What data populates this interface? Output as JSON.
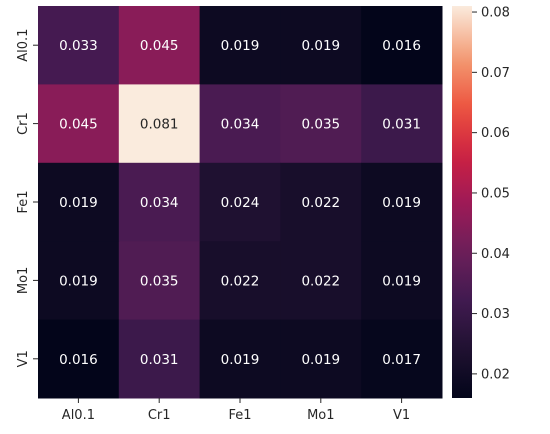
{
  "chart_data": {
    "type": "heatmap",
    "title": "",
    "xlabel": "",
    "ylabel": "",
    "x_categories": [
      "Al0.1",
      "Cr1",
      "Fe1",
      "Mo1",
      "V1"
    ],
    "y_categories": [
      "Al0.1",
      "Cr1",
      "Fe1",
      "Mo1",
      "V1"
    ],
    "values": [
      [
        0.033,
        0.045,
        0.019,
        0.019,
        0.016
      ],
      [
        0.045,
        0.081,
        0.034,
        0.035,
        0.031
      ],
      [
        0.019,
        0.034,
        0.024,
        0.022,
        0.019
      ],
      [
        0.019,
        0.035,
        0.022,
        0.022,
        0.019
      ],
      [
        0.016,
        0.031,
        0.019,
        0.019,
        0.017
      ]
    ],
    "value_labels": [
      [
        "0.033",
        "0.045",
        "0.019",
        "0.019",
        "0.016"
      ],
      [
        "0.045",
        "0.081",
        "0.034",
        "0.035",
        "0.031"
      ],
      [
        "0.019",
        "0.034",
        "0.024",
        "0.022",
        "0.019"
      ],
      [
        "0.019",
        "0.035",
        "0.022",
        "0.022",
        "0.019"
      ],
      [
        "0.016",
        "0.031",
        "0.019",
        "0.019",
        "0.017"
      ]
    ],
    "colormap": "rocket",
    "color_range": [
      0.016,
      0.081
    ],
    "colorbar": {
      "ticks": [
        0.02,
        0.03,
        0.04,
        0.05,
        0.06,
        0.07,
        0.08
      ],
      "tick_labels": [
        "0.02",
        "0.03",
        "0.04",
        "0.05",
        "0.06",
        "0.07",
        "0.08"
      ],
      "placement": "right"
    },
    "grid": false
  }
}
